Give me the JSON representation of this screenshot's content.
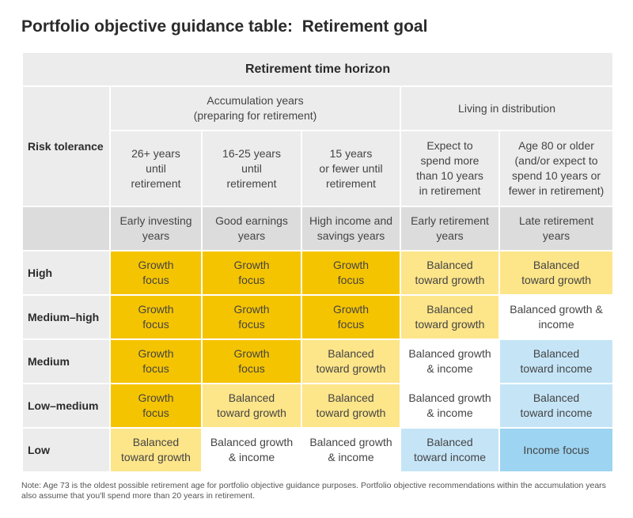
{
  "title": "Portfolio objective guidance table:  Retirement goal",
  "header": {
    "horizon": "Retirement time horizon",
    "risk_tolerance": "Risk tolerance",
    "accumulation": "Accumulation years\n(preparing for retirement)",
    "distribution": "Living in distribution",
    "columns": [
      {
        "horizon": "26+ years\nuntil\nretirement",
        "stage": "Early investing\nyears"
      },
      {
        "horizon": "16-25 years\nuntil\nretirement",
        "stage": "Good earnings\nyears"
      },
      {
        "horizon": "15 years\nor fewer until\nretirement",
        "stage": "High income and\nsavings years"
      },
      {
        "horizon": "Expect to\nspend more\nthan 10 years\nin retirement",
        "stage": "Early retirement\nyears"
      },
      {
        "horizon": "Age 80 or older\n(and/or expect to\nspend 10 years or\nfewer in retirement)",
        "stage": "Late retirement\nyears"
      }
    ]
  },
  "rows": [
    {
      "label": "High",
      "cells": [
        {
          "text": "Growth\nfocus",
          "type": "growth"
        },
        {
          "text": "Growth\nfocus",
          "type": "growth"
        },
        {
          "text": "Growth\nfocus",
          "type": "growth"
        },
        {
          "text": "Balanced\ntoward growth",
          "type": "balanced-growth"
        },
        {
          "text": "Balanced\ntoward growth",
          "type": "balanced-growth"
        }
      ]
    },
    {
      "label": "Medium–high",
      "cells": [
        {
          "text": "Growth\nfocus",
          "type": "growth"
        },
        {
          "text": "Growth\nfocus",
          "type": "growth"
        },
        {
          "text": "Growth\nfocus",
          "type": "growth"
        },
        {
          "text": "Balanced\ntoward growth",
          "type": "balanced-growth"
        },
        {
          "text": "Balanced growth &\nincome",
          "type": "balanced-growth-income"
        }
      ]
    },
    {
      "label": "Medium",
      "cells": [
        {
          "text": "Growth\nfocus",
          "type": "growth"
        },
        {
          "text": "Growth\nfocus",
          "type": "growth"
        },
        {
          "text": "Balanced\ntoward growth",
          "type": "balanced-growth"
        },
        {
          "text": "Balanced growth\n& income",
          "type": "balanced-growth-income"
        },
        {
          "text": "Balanced\ntoward income",
          "type": "balanced-income"
        }
      ]
    },
    {
      "label": "Low–medium",
      "cells": [
        {
          "text": "Growth\nfocus",
          "type": "growth"
        },
        {
          "text": "Balanced\ntoward growth",
          "type": "balanced-growth"
        },
        {
          "text": "Balanced\ntoward growth",
          "type": "balanced-growth"
        },
        {
          "text": "Balanced growth\n& income",
          "type": "balanced-growth-income"
        },
        {
          "text": "Balanced\ntoward income",
          "type": "balanced-income"
        }
      ]
    },
    {
      "label": "Low",
      "cells": [
        {
          "text": "Balanced\ntoward growth",
          "type": "balanced-growth"
        },
        {
          "text": "Balanced growth\n& income",
          "type": "balanced-growth-income"
        },
        {
          "text": "Balanced growth\n& income",
          "type": "balanced-growth-income"
        },
        {
          "text": "Balanced\ntoward income",
          "type": "balanced-income"
        },
        {
          "text": "Income focus",
          "type": "income"
        }
      ]
    }
  ],
  "colors": {
    "growth": "#f5c400",
    "balanced-growth": "#fde589",
    "balanced-growth-income": "#ffffff",
    "balanced-income": "#c5e5f7",
    "income": "#9dd4f2"
  },
  "note": "Note:  Age 73 is the oldest possible retirement age for portfolio objective guidance purposes. Portfolio objective recommendations within the accumulation years also assume that you'll spend more than 20 years in retirement."
}
